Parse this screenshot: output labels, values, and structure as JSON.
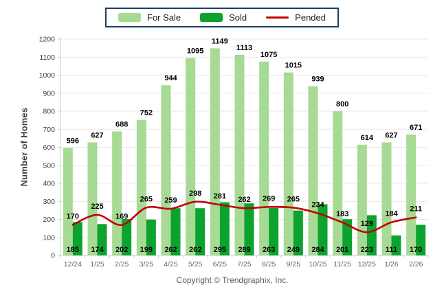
{
  "legend": {
    "for_sale": "For Sale",
    "sold": "Sold",
    "pended": "Pended"
  },
  "y_axis": {
    "title": "Number of Homes",
    "ticks": [
      0,
      100,
      200,
      300,
      400,
      500,
      600,
      700,
      800,
      900,
      1000,
      1100,
      1200
    ]
  },
  "footer": {
    "copyright": "Copyright © Trendgraphix, Inc."
  },
  "colors": {
    "for_sale": "#A6DA95",
    "sold": "#0BA32E",
    "pended": "#C00000",
    "grid": "#E9E9E9",
    "axis": "#C9CDD2",
    "tick": "#C9CDD2",
    "legend_border": "#1C3D5E",
    "value_label": "#000000",
    "x_label": "#5A6470",
    "y_label": "#404040"
  },
  "chart_data": {
    "type": "bar",
    "title": "",
    "xlabel": "",
    "ylabel": "Number of Homes",
    "ylim": [
      0,
      1200
    ],
    "ytick_step": 100,
    "grid": true,
    "legend_position": "top",
    "categories": [
      "12/24",
      "1/25",
      "2/25",
      "3/25",
      "4/25",
      "5/25",
      "6/25",
      "7/25",
      "8/25",
      "9/25",
      "10/25",
      "11/25",
      "12/25",
      "1/26",
      "2/26"
    ],
    "series": [
      {
        "name": "For Sale",
        "type": "bar",
        "color_key": "for_sale",
        "values": [
          596,
          627,
          688,
          752,
          944,
          1095,
          1149,
          1113,
          1075,
          1015,
          939,
          800,
          614,
          627,
          671
        ]
      },
      {
        "name": "Sold",
        "type": "bar",
        "color_key": "sold",
        "values": [
          185,
          174,
          202,
          199,
          262,
          262,
          295,
          289,
          263,
          249,
          284,
          201,
          223,
          111,
          170
        ]
      },
      {
        "name": "Pended",
        "type": "line",
        "color_key": "pended",
        "values": [
          170,
          225,
          169,
          265,
          259,
          298,
          281,
          262,
          269,
          265,
          234,
          183,
          129,
          184,
          211
        ]
      }
    ]
  }
}
